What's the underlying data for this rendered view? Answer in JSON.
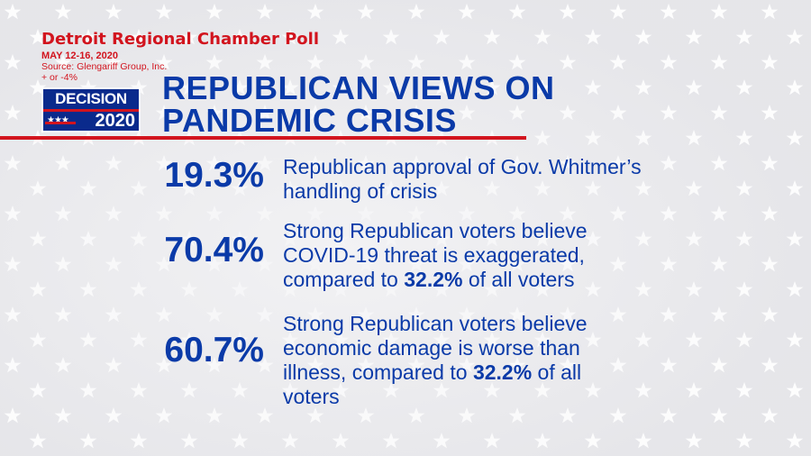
{
  "poll": {
    "title": "Detroit Regional Chamber Poll",
    "dates": "MAY 12-16, 2020",
    "source": "Source: Glengariff Group, Inc.",
    "margin": "+ or -4%"
  },
  "logo": {
    "line1": "DECISION",
    "line2": "2020",
    "stars": "★★★"
  },
  "headline": {
    "line1": "REPUBLICAN VIEWS ON",
    "line2": "PANDEMIC CRISIS"
  },
  "stats": [
    {
      "value": "19.3%",
      "lines": [
        "Republican approval of Gov. Whitmer’s",
        "handling of crisis"
      ]
    },
    {
      "value": "70.4%",
      "line1": "Strong Republican voters believe",
      "line2": "COVID-19 threat is exaggerated,",
      "line3_pre": "compared to ",
      "line3_bold": "32.2%",
      "line3_post": " of all voters"
    },
    {
      "value": "60.7%",
      "line1": "Strong Republican voters believe",
      "line2": "economic damage is worse than",
      "line3_pre": "illness, compared to ",
      "line3_bold": "32.2%",
      "line3_post": " of all",
      "line4": "voters"
    }
  ],
  "colors": {
    "red": "#d2141e",
    "blue": "#0a3aa8",
    "navy": "#0a2a8c",
    "background": "#f3f3f5"
  }
}
